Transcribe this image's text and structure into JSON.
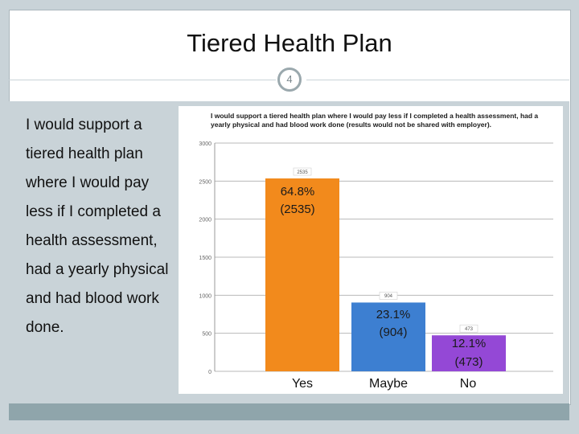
{
  "slide": {
    "title": "Tiered Health Plan",
    "page_number": "4",
    "body_text": "I would support a tiered health plan where I would pay less if I completed a health assessment, had a yearly physical and had blood work done."
  },
  "chart_data": {
    "type": "bar",
    "title": "I would support a tiered health plan where I would pay less if I completed a health assessment, had a yearly physical and had blood work done (results would not be shared with employer).",
    "categories": [
      "Yes",
      "Maybe",
      "No"
    ],
    "values": [
      2535,
      904,
      473
    ],
    "percent_labels": [
      "64.8%",
      "23.1%",
      "12.1%"
    ],
    "count_labels": [
      "(2535)",
      "(904)",
      "(473)"
    ],
    "bar_top_labels": [
      "2535",
      "904",
      "473"
    ],
    "ylim": [
      0,
      3000
    ],
    "yticks": [
      "0",
      "500",
      "1000",
      "1500",
      "2000",
      "2500",
      "3000"
    ],
    "grid": true,
    "colors": {
      "Yes": "#f28a1c",
      "Maybe": "#3d7fd1",
      "No": "#9448d6"
    }
  }
}
